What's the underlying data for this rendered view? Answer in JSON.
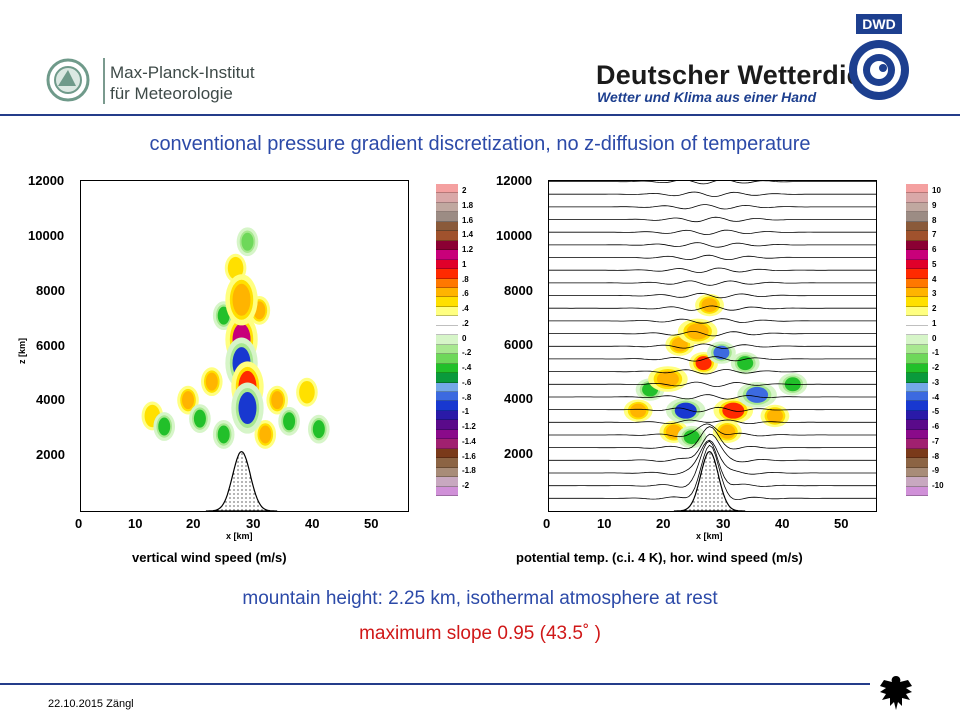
{
  "header": {
    "mpi_line1": "Max-Planck-Institut",
    "mpi_line2": "für Meteorologie",
    "dwd_name": "Deutscher Wetterdienst",
    "dwd_slogan": "Wetter und Klima aus einer Hand",
    "dwd_logo_text": "DWD"
  },
  "slide_title": "conventional pressure gradient discretization, no z-diffusion of temperature",
  "subtitle": "mountain height: 2.25 km, isothermal atmosphere at rest",
  "slope_text": "maximum slope 0.95 (43.5˚ )",
  "footer": {
    "date_author": "22.10.2015  Zängl"
  },
  "colors": {
    "title_blue": "#2c4aa8",
    "slope_red": "#d01818",
    "rule_blue": "#243c8a"
  },
  "chart_data": [
    {
      "type": "heatmap",
      "caption": "vertical wind speed (m/s)",
      "xlabel": "x [km]",
      "ylabel": "z [km]",
      "xlim": [
        0,
        55
      ],
      "ylim": [
        0,
        12500
      ],
      "x_ticks": [
        "0",
        "10",
        "20",
        "30",
        "40",
        "50"
      ],
      "y_ticks": [
        "2000",
        "4000",
        "6000",
        "8000",
        "10000",
        "12000"
      ],
      "mountain": {
        "center_km": 27,
        "height_m": 2250
      },
      "colorbar": {
        "labels": [
          "2",
          "1.8",
          "1.6",
          "1.4",
          "1.2",
          "1",
          ".8",
          ".6",
          ".4",
          ".2",
          "0",
          "-.2",
          "-.4",
          "-.6",
          "-.8",
          "-1",
          "-1.2",
          "-1.4",
          "-1.6",
          "-1.8",
          "-2"
        ],
        "colors": [
          "#f4a0a0",
          "#d9a8a8",
          "#c0a8a0",
          "#9c8c84",
          "#8a5a3a",
          "#a0522d",
          "#8b0033",
          "#c8007a",
          "#e0002a",
          "#ff2a00",
          "#ff7800",
          "#ffb400",
          "#ffe000",
          "#ffff80",
          "#ffffff",
          "#ffffff",
          "#d6f5c8",
          "#a8e890",
          "#6ed85a",
          "#22c02a",
          "#0a9a3c",
          "#74a8e8",
          "#3c6ae0",
          "#1838d0",
          "#2a1aa8",
          "#5a0a8a",
          "#8a0a8a",
          "#a02070",
          "#7a3a1a",
          "#8c6444",
          "#a88c78",
          "#c8a8c0",
          "#d090d8"
        ]
      },
      "features": [
        {
          "x_km": 27,
          "z_m": 6500,
          "value": 1.2
        },
        {
          "x_km": 27,
          "z_m": 5600,
          "value": -1.4
        },
        {
          "x_km": 28,
          "z_m": 4700,
          "value": 1.0
        },
        {
          "x_km": 28,
          "z_m": 3900,
          "value": -1.0
        },
        {
          "x_km": 27,
          "z_m": 8000,
          "value": 0.6
        }
      ]
    },
    {
      "type": "heatmap",
      "caption": "potential temp. (c.i. 4 K), hor. wind speed (m/s)",
      "xlabel": "x [km]",
      "xlim": [
        0,
        55
      ],
      "ylim": [
        0,
        12500
      ],
      "x_ticks": [
        "0",
        "10",
        "20",
        "30",
        "40",
        "50"
      ],
      "y_ticks": [
        "2000",
        "4000",
        "6000",
        "8000",
        "10000",
        "12000"
      ],
      "mountain": {
        "center_km": 27,
        "height_m": 2250
      },
      "isentrope_count": 26,
      "colorbar": {
        "labels": [
          "10",
          "9",
          "8",
          "7",
          "6",
          "5",
          "4",
          "3",
          "2",
          "1",
          "0",
          "-1",
          "-2",
          "-3",
          "-4",
          "-5",
          "-6",
          "-7",
          "-8",
          "-9",
          "-10"
        ],
        "colors": [
          "#f4a0a0",
          "#d9a8a8",
          "#c0a8a0",
          "#9c8c84",
          "#8a5a3a",
          "#a0522d",
          "#8b0033",
          "#c8007a",
          "#e0002a",
          "#ff2a00",
          "#ff7800",
          "#ffb400",
          "#ffe000",
          "#ffff80",
          "#ffffff",
          "#ffffff",
          "#d6f5c8",
          "#a8e890",
          "#6ed85a",
          "#22c02a",
          "#0a9a3c",
          "#74a8e8",
          "#3c6ae0",
          "#1838d0",
          "#2a1aa8",
          "#5a0a8a",
          "#8a0a8a",
          "#a02070",
          "#7a3a1a",
          "#8c6444",
          "#a88c78",
          "#c8a8c0",
          "#d090d8"
        ]
      },
      "features": [
        {
          "x_km": 25,
          "z_m": 6800,
          "value": 3
        },
        {
          "x_km": 23,
          "z_m": 3800,
          "value": -5
        },
        {
          "x_km": 31,
          "z_m": 3800,
          "value": 4
        },
        {
          "x_km": 35,
          "z_m": 4400,
          "value": -3
        },
        {
          "x_km": 20,
          "z_m": 5000,
          "value": 2
        }
      ]
    }
  ]
}
